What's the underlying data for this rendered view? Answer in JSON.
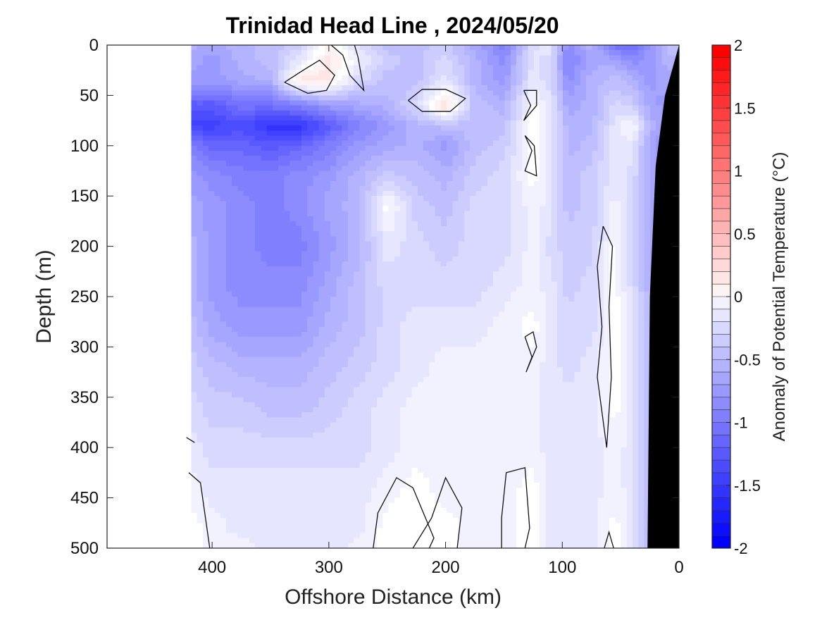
{
  "chart_data": {
    "type": "heatmap",
    "subtype": "filled-contour",
    "title": "Trinidad Head Line , 2024/05/20",
    "xlabel": "Offshore Distance (km)",
    "ylabel": "Depth (m)",
    "xlim": [
      490,
      0
    ],
    "ylim": [
      500,
      0
    ],
    "x_reversed": true,
    "y_reversed": true,
    "x_ticks": [
      400,
      300,
      200,
      100,
      0
    ],
    "y_ticks": [
      0,
      50,
      100,
      150,
      200,
      250,
      300,
      350,
      400,
      450,
      500
    ],
    "data_x_extent": [
      418,
      0
    ],
    "colorbar": {
      "label": "Anomaly of Potential Temperature (°C)",
      "range": [
        -2,
        2
      ],
      "level_step": 0.1,
      "ticks": [
        "2",
        "1.5",
        "1",
        "0.5",
        "0",
        "-0.5",
        "-1",
        "-1.5",
        "-2"
      ],
      "tick_values": [
        2,
        1.5,
        1,
        0.5,
        0,
        -0.5,
        -1,
        -1.5,
        -2
      ],
      "colors": {
        "negative_end": "#0000ff",
        "zero": "#ffffff",
        "positive_end": "#ff0000"
      },
      "placement": "right"
    },
    "x_grid": [
      418,
      400,
      375,
      350,
      325,
      300,
      275,
      250,
      225,
      200,
      175,
      150,
      125,
      110,
      95,
      75,
      55,
      40,
      25,
      10,
      0
    ],
    "depth_grid": [
      0,
      15,
      35,
      60,
      80,
      100,
      130,
      160,
      200,
      240,
      280,
      320,
      360,
      400,
      440,
      480,
      500
    ],
    "anomaly_values": [
      [
        -0.6,
        -0.7,
        -0.6,
        -0.5,
        -0.4,
        0.1,
        -0.3,
        -0.5,
        -0.5,
        -0.4,
        -0.7,
        -1.0,
        -0.3,
        -0.2,
        -0.9,
        -0.6,
        -1.1,
        -1.2,
        -0.8,
        -0.5,
        -0.5
      ],
      [
        -0.7,
        -0.8,
        -0.6,
        -0.5,
        -0.2,
        0.2,
        -0.1,
        -0.4,
        -0.5,
        -0.3,
        -0.6,
        -0.9,
        -0.2,
        -0.3,
        -1.0,
        -0.7,
        -0.7,
        -0.9,
        -0.8,
        -0.6,
        -0.6
      ],
      [
        -0.8,
        -0.8,
        -0.7,
        -0.6,
        0.2,
        0.2,
        -0.3,
        -0.5,
        -0.5,
        -0.2,
        -0.6,
        -0.8,
        -0.2,
        -0.3,
        -0.9,
        -0.6,
        -0.5,
        -0.6,
        -0.8,
        -0.7,
        -0.7
      ],
      [
        -1.3,
        -1.3,
        -1.1,
        -1.1,
        -1.0,
        -0.8,
        -0.7,
        -0.6,
        -0.3,
        0.3,
        -0.5,
        -0.6,
        0.0,
        -0.2,
        -0.7,
        -0.6,
        -0.3,
        -0.4,
        -0.7,
        -0.8,
        -0.8
      ],
      [
        -1.5,
        -1.5,
        -1.4,
        -1.6,
        -1.6,
        -1.3,
        -1.0,
        -0.8,
        -0.6,
        -0.5,
        -0.5,
        -0.5,
        0.0,
        -0.2,
        -0.6,
        -0.6,
        -0.2,
        0.0,
        -0.6,
        -0.8,
        -0.8
      ],
      [
        -1.0,
        -1.2,
        -1.2,
        -1.3,
        -1.2,
        -1.0,
        -0.8,
        -0.7,
        -0.6,
        -0.8,
        -0.5,
        -0.4,
        0.0,
        -0.2,
        -0.6,
        -0.5,
        -0.2,
        -0.2,
        -0.7,
        -0.9,
        -0.9
      ],
      [
        -0.8,
        -0.9,
        -1.0,
        -1.0,
        -0.9,
        -0.8,
        -0.6,
        -0.4,
        -0.5,
        -0.6,
        -0.4,
        -0.3,
        0.0,
        -0.2,
        -0.5,
        -0.4,
        -0.2,
        -0.3,
        -0.6,
        -0.9,
        -0.9
      ],
      [
        -0.7,
        -0.8,
        -0.9,
        -1.0,
        -0.9,
        -0.7,
        -0.6,
        0.0,
        -0.4,
        -0.5,
        -0.3,
        -0.3,
        -0.1,
        -0.2,
        -0.5,
        -0.4,
        -0.1,
        -0.3,
        -0.6,
        -0.9,
        -0.9
      ],
      [
        -0.6,
        -0.8,
        -0.9,
        -1.0,
        -1.0,
        -0.8,
        -0.6,
        -0.2,
        -0.3,
        -0.4,
        -0.3,
        -0.3,
        -0.1,
        -0.3,
        -0.4,
        -0.4,
        0.0,
        -0.3,
        -0.6,
        -0.9,
        -0.9
      ],
      [
        -0.6,
        -0.8,
        -0.9,
        -0.9,
        -0.9,
        -0.7,
        -0.5,
        -0.3,
        -0.3,
        -0.3,
        -0.3,
        -0.2,
        -0.1,
        -0.2,
        -0.4,
        -0.3,
        0.0,
        -0.3,
        -0.6,
        -0.9,
        -0.9
      ],
      [
        -0.5,
        -0.7,
        -0.8,
        -0.8,
        -0.8,
        -0.6,
        -0.5,
        -0.3,
        -0.2,
        -0.2,
        -0.2,
        -0.1,
        0.0,
        -0.2,
        -0.3,
        -0.3,
        0.0,
        -0.2,
        -0.6,
        -0.8,
        -0.8
      ],
      [
        -0.4,
        -0.5,
        -0.6,
        -0.6,
        -0.6,
        -0.5,
        -0.4,
        -0.3,
        -0.2,
        -0.1,
        -0.1,
        -0.1,
        -0.1,
        -0.2,
        -0.3,
        -0.2,
        0.0,
        -0.2,
        -0.5,
        -0.8,
        -0.8
      ],
      [
        -0.3,
        -0.4,
        -0.4,
        -0.5,
        -0.5,
        -0.4,
        -0.3,
        -0.2,
        -0.1,
        -0.1,
        -0.1,
        -0.1,
        -0.1,
        -0.2,
        -0.2,
        -0.2,
        0.0,
        -0.2,
        -0.5,
        -0.8,
        -0.8
      ],
      [
        -0.2,
        -0.3,
        -0.3,
        -0.3,
        -0.3,
        -0.3,
        -0.3,
        -0.2,
        -0.1,
        -0.1,
        -0.1,
        -0.1,
        -0.1,
        -0.2,
        -0.2,
        -0.2,
        -0.1,
        -0.2,
        -0.5,
        -0.8,
        -0.8
      ],
      [
        -0.1,
        -0.2,
        -0.2,
        -0.2,
        -0.2,
        -0.2,
        -0.2,
        -0.1,
        0.0,
        -0.1,
        -0.1,
        -0.1,
        0.0,
        -0.2,
        -0.2,
        -0.2,
        -0.1,
        -0.2,
        -0.5,
        -0.8,
        -0.8
      ],
      [
        0.0,
        -0.1,
        -0.2,
        -0.2,
        -0.2,
        -0.2,
        -0.2,
        0.0,
        0.0,
        0.0,
        -0.1,
        -0.1,
        0.0,
        -0.2,
        -0.2,
        -0.2,
        0.0,
        -0.2,
        -0.5,
        -0.8,
        -0.8
      ],
      [
        0.0,
        -0.1,
        -0.1,
        -0.2,
        -0.2,
        -0.2,
        -0.1,
        0.0,
        0.0,
        0.0,
        -0.1,
        -0.1,
        0.0,
        -0.2,
        -0.2,
        -0.2,
        0.0,
        -0.2,
        -0.5,
        -0.8,
        -0.8
      ]
    ],
    "zero_contours": [
      [
        [
          338,
          37
        ],
        [
          322,
          25
        ],
        [
          308,
          15
        ],
        [
          295,
          30
        ],
        [
          302,
          45
        ],
        [
          318,
          48
        ],
        [
          338,
          37
        ]
      ],
      [
        [
          298,
          0
        ],
        [
          288,
          10
        ],
        [
          282,
          30
        ],
        [
          270,
          45
        ],
        [
          275,
          12
        ],
        [
          278,
          0
        ]
      ],
      [
        [
          232,
          55
        ],
        [
          220,
          44
        ],
        [
          200,
          44
        ],
        [
          183,
          53
        ],
        [
          196,
          66
        ],
        [
          220,
          66
        ],
        [
          232,
          55
        ]
      ],
      [
        [
          133,
          45
        ],
        [
          127,
          60
        ],
        [
          133,
          75
        ],
        [
          122,
          60
        ],
        [
          122,
          45
        ],
        [
          133,
          45
        ]
      ],
      [
        [
          132,
          90
        ],
        [
          126,
          105
        ],
        [
          132,
          125
        ],
        [
          122,
          130
        ],
        [
          124,
          100
        ],
        [
          132,
          90
        ]
      ],
      [
        [
          132,
          290
        ],
        [
          126,
          310
        ],
        [
          131,
          325
        ],
        [
          122,
          300
        ],
        [
          125,
          285
        ],
        [
          132,
          290
        ]
      ],
      [
        [
          65,
          180
        ],
        [
          70,
          220
        ],
        [
          66,
          280
        ],
        [
          70,
          330
        ],
        [
          62,
          400
        ],
        [
          58,
          330
        ],
        [
          60,
          260
        ],
        [
          57,
          200
        ],
        [
          65,
          180
        ]
      ],
      [
        [
          422,
          390
        ],
        [
          415,
          395
        ]
      ],
      [
        [
          420,
          425
        ],
        [
          410,
          435
        ],
        [
          402,
          500
        ]
      ],
      [
        [
          262,
          500
        ],
        [
          258,
          465
        ],
        [
          242,
          430
        ],
        [
          228,
          440
        ],
        [
          210,
          490
        ],
        [
          214,
          500
        ]
      ],
      [
        [
          228,
          500
        ],
        [
          212,
          470
        ],
        [
          200,
          430
        ],
        [
          186,
          460
        ],
        [
          190,
          500
        ]
      ],
      [
        [
          152,
          500
        ],
        [
          152,
          470
        ],
        [
          148,
          425
        ],
        [
          132,
          420
        ],
        [
          128,
          480
        ],
        [
          132,
          500
        ]
      ],
      [
        [
          64,
          500
        ],
        [
          60,
          484
        ],
        [
          56,
          500
        ]
      ]
    ],
    "bathymetry_outline": [
      [
        0,
        0
      ],
      [
        12,
        50
      ],
      [
        20,
        120
      ],
      [
        25,
        250
      ],
      [
        26,
        380
      ],
      [
        27,
        500
      ],
      [
        0,
        500
      ]
    ]
  }
}
